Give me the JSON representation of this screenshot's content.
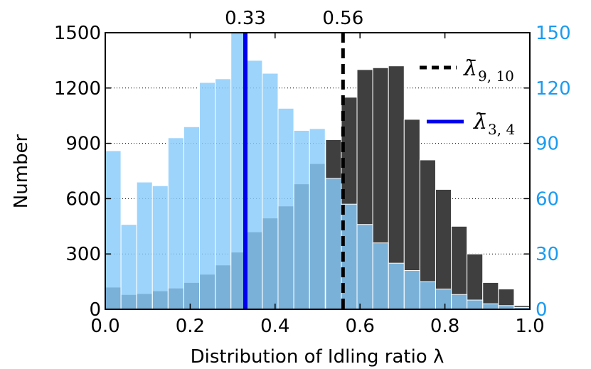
{
  "chart_data": {
    "type": "bar",
    "xlabel": "Distribution of Idling ratio λ",
    "ylabel": "Number",
    "xlim": [
      0.0,
      1.0
    ],
    "ylim_left": [
      0,
      1500
    ],
    "ylim_right": [
      0,
      150
    ],
    "x_ticks": [
      "0.0",
      "0.2",
      "0.4",
      "0.6",
      "0.8",
      "1.0"
    ],
    "y_ticks_left": [
      "0",
      "300",
      "600",
      "900",
      "1200",
      "1500"
    ],
    "y_ticks_right": [
      "0",
      "30",
      "60",
      "90",
      "120",
      "150"
    ],
    "grid": "horizontal dotted",
    "bin_width": 0.037,
    "bin_starts": [
      0.0,
      0.037,
      0.074,
      0.111,
      0.148,
      0.185,
      0.222,
      0.259,
      0.296,
      0.333,
      0.37,
      0.407,
      0.444,
      0.481,
      0.519,
      0.556,
      0.593,
      0.63,
      0.667,
      0.704,
      0.741,
      0.778,
      0.815,
      0.852,
      0.889,
      0.926,
      0.963
    ],
    "series": [
      {
        "name": "λ_{9,10}",
        "axis": "left",
        "color": "#3f3f3f",
        "values": [
          120,
          80,
          85,
          100,
          115,
          145,
          190,
          240,
          310,
          420,
          495,
          560,
          680,
          790,
          920,
          1150,
          1300,
          1310,
          1320,
          1030,
          810,
          650,
          450,
          300,
          145,
          110,
          20
        ]
      },
      {
        "name": "λ_{3,4}",
        "axis": "right",
        "color": "#87cbfa",
        "values": [
          86,
          46,
          69,
          67,
          93,
          99,
          123,
          125,
          150,
          135,
          128,
          109,
          97,
          98,
          71,
          57,
          46,
          36,
          25,
          21,
          15,
          11,
          8,
          5,
          3,
          2,
          1
        ]
      }
    ],
    "vlines": [
      {
        "name": "mean_9_10",
        "x": 0.56,
        "label": "0.56",
        "style": "dashed",
        "color": "#000000"
      },
      {
        "name": "mean_3_4",
        "x": 0.33,
        "label": "0.33",
        "style": "solid",
        "color": "#0000ee"
      }
    ],
    "legend": {
      "placement": "top-right",
      "entries": [
        {
          "base": "λ̄",
          "sub": "9, 10",
          "style": "dashed",
          "color": "#000000"
        },
        {
          "base": "λ̄",
          "sub": "3, 4",
          "style": "solid",
          "color": "#0000ee"
        }
      ]
    }
  }
}
